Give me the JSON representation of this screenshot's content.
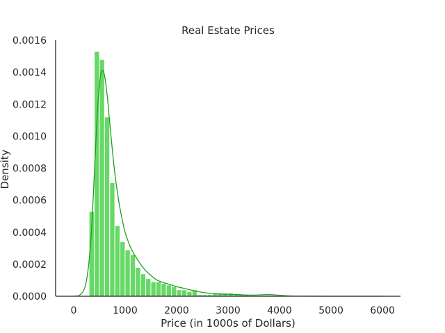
{
  "chart_data": {
    "type": "bar",
    "title": "Real Estate Prices",
    "xlabel": "Price (in 1000s of Dollars)",
    "ylabel": "Density",
    "xlim": [
      -350,
      6350
    ],
    "ylim": [
      0,
      0.0016
    ],
    "x_ticks": [
      0,
      1000,
      2000,
      3000,
      4000,
      5000,
      6000
    ],
    "x_tick_labels": [
      "0",
      "1000",
      "2000",
      "3000",
      "4000",
      "5000",
      "6000"
    ],
    "y_ticks": [
      0,
      0.0002,
      0.0004,
      0.0006,
      0.0008,
      0.001,
      0.0012,
      0.0014,
      0.0016
    ],
    "y_tick_labels": [
      "0.0000",
      "0.0002",
      "0.0004",
      "0.0006",
      "0.0008",
      "0.0010",
      "0.0012",
      "0.0014",
      "0.0016"
    ],
    "grid": false,
    "histogram": {
      "bin_width": 100,
      "bins": [
        {
          "x0": 300,
          "density": 0.00053
        },
        {
          "x0": 400,
          "density": 0.00153
        },
        {
          "x0": 500,
          "density": 0.00148
        },
        {
          "x0": 600,
          "density": 0.00112
        },
        {
          "x0": 700,
          "density": 0.00071
        },
        {
          "x0": 800,
          "density": 0.00044
        },
        {
          "x0": 900,
          "density": 0.00034
        },
        {
          "x0": 1000,
          "density": 0.00029
        },
        {
          "x0": 1100,
          "density": 0.00026
        },
        {
          "x0": 1200,
          "density": 0.00018
        },
        {
          "x0": 1300,
          "density": 0.00014
        },
        {
          "x0": 1400,
          "density": 0.00011
        },
        {
          "x0": 1500,
          "density": 9e-05
        },
        {
          "x0": 1600,
          "density": 9e-05
        },
        {
          "x0": 1700,
          "density": 8e-05
        },
        {
          "x0": 1800,
          "density": 7e-05
        },
        {
          "x0": 1900,
          "density": 6e-05
        },
        {
          "x0": 2000,
          "density": 4e-05
        },
        {
          "x0": 2100,
          "density": 4e-05
        },
        {
          "x0": 2200,
          "density": 3e-05
        },
        {
          "x0": 2300,
          "density": 4e-05
        },
        {
          "x0": 2400,
          "density": 1e-05
        },
        {
          "x0": 2500,
          "density": 1e-05
        },
        {
          "x0": 2600,
          "density": 1e-05
        },
        {
          "x0": 2700,
          "density": 2e-05
        },
        {
          "x0": 2800,
          "density": 2e-05
        },
        {
          "x0": 2900,
          "density": 2e-05
        },
        {
          "x0": 3000,
          "density": 2e-05
        },
        {
          "x0": 3100,
          "density": 1e-05
        },
        {
          "x0": 3200,
          "density": 1e-05
        },
        {
          "x0": 3300,
          "density": 1e-05
        }
      ]
    },
    "kde": {
      "x": [
        0,
        100,
        200,
        250,
        300,
        350,
        400,
        450,
        500,
        550,
        600,
        650,
        700,
        750,
        800,
        850,
        900,
        950,
        1000,
        1100,
        1200,
        1300,
        1400,
        1500,
        1600,
        1700,
        1800,
        1900,
        2000,
        2200,
        2400,
        2600,
        2800,
        3000,
        3200,
        3400,
        3600,
        3800,
        4000,
        4200,
        4400,
        5000,
        6000
      ],
      "y": [
        0.0,
        3e-06,
        4e-05,
        0.0001,
        0.00022,
        0.00042,
        0.00075,
        0.00108,
        0.00132,
        0.00141,
        0.00138,
        0.00126,
        0.00109,
        0.00092,
        0.00077,
        0.00065,
        0.00055,
        0.00047,
        0.0004,
        0.00031,
        0.00025,
        0.0002,
        0.00016,
        0.00013,
        0.000105,
        9e-05,
        8e-05,
        7e-05,
        6e-05,
        4.5e-05,
        3e-05,
        2e-05,
        1.5e-05,
        1.2e-05,
        1e-05,
        7e-06,
        8e-06,
        1e-05,
        6e-06,
        2e-06,
        5e-07,
        0.0,
        0.0
      ]
    },
    "colors": {
      "bar_fill": "#66d966",
      "bar_edge": "#ffffff",
      "kde_line": "#1f9e1f",
      "axis": "#262626"
    }
  }
}
